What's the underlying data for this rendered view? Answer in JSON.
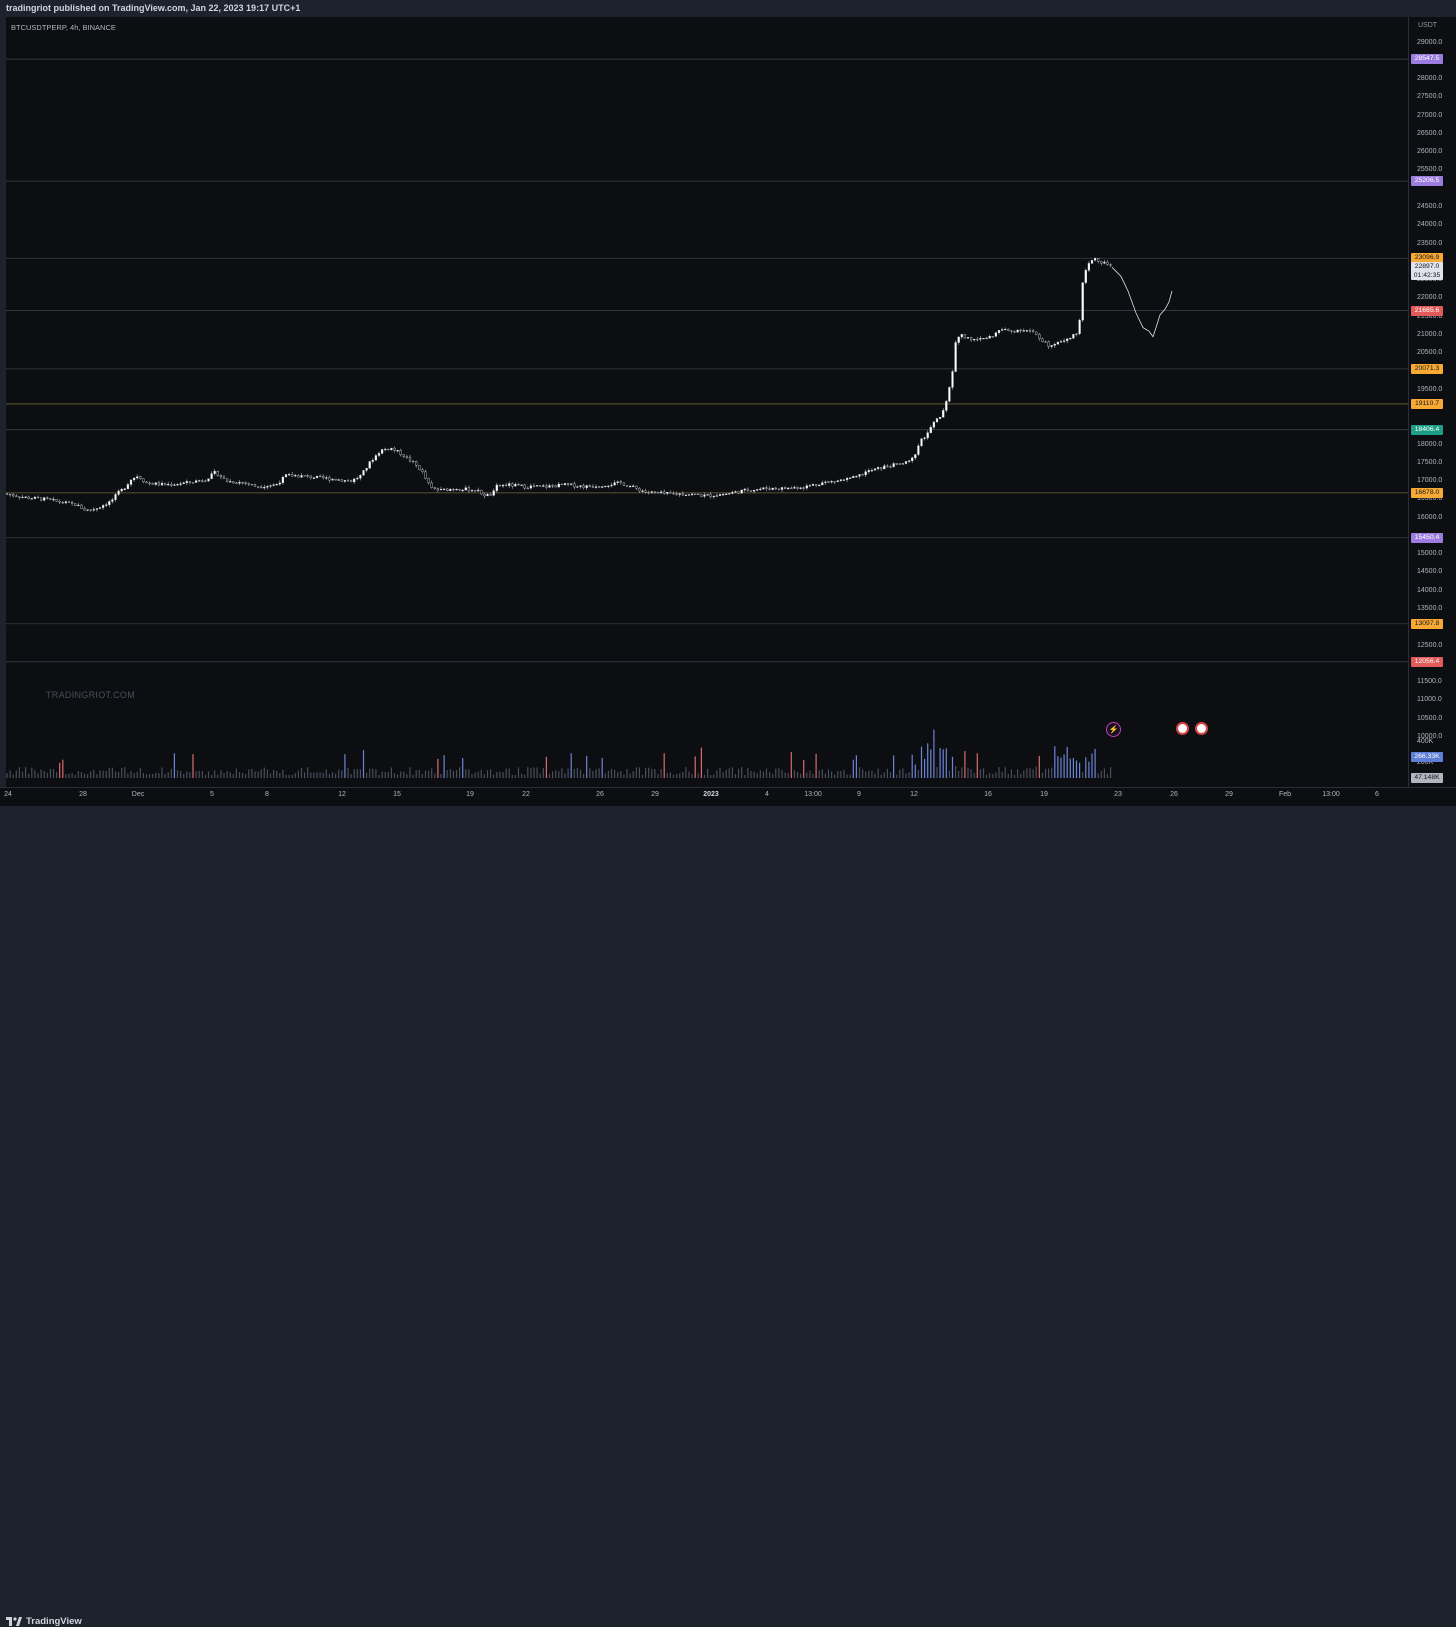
{
  "header": {
    "published_text": "tradingriot published on TradingView.com, Jan 22, 2023 19:17 UTC+1"
  },
  "chart": {
    "symbol_label": "BTCUSDTPERP, 4h, BINANCE",
    "watermark": "TRADINGRIOT.COM",
    "currency": "USDT"
  },
  "price_scale": {
    "ticks": [
      "29000.0",
      "28000.0",
      "27500.0",
      "27000.0",
      "26500.0",
      "26000.0",
      "25500.0",
      "24500.0",
      "24000.0",
      "23500.0",
      "22500.0",
      "22000.0",
      "21500.0",
      "21000.0",
      "20500.0",
      "19500.0",
      "19000.0",
      "18000.0",
      "17500.0",
      "17000.0",
      "16500.0",
      "16000.0",
      "15000.0",
      "14500.0",
      "14000.0",
      "13500.0",
      "13000.0",
      "12500.0",
      "11500.0",
      "11000.0",
      "10500.0",
      "10000.0"
    ],
    "level_badges": [
      {
        "text": "28547.5",
        "color": "#9c7ddf"
      },
      {
        "text": "25206.5",
        "color": "#9c7ddf"
      },
      {
        "text": "23096.9",
        "color": "#f7a934"
      },
      {
        "text": "21665.6",
        "color": "#e35a5a"
      },
      {
        "text": "20071.3",
        "color": "#f7a934"
      },
      {
        "text": "19110.7",
        "color": "#f7a934"
      },
      {
        "text": "18406.4",
        "color": "#1e9e86"
      },
      {
        "text": "16678.0",
        "color": "#f7a934"
      },
      {
        "text": "15450.4",
        "color": "#9c7ddf"
      },
      {
        "text": "13097.8",
        "color": "#f7a934"
      },
      {
        "text": "12056.4",
        "color": "#e35a5a"
      }
    ],
    "last_price": "22897.0",
    "countdown": "01:42:35",
    "volume_labels": {
      "v400": "400K",
      "v200": "200K",
      "vol_last": "266.33K",
      "vol_avg": "47.148K"
    }
  },
  "time_scale": {
    "labels": [
      "24",
      "28",
      "Dec",
      "5",
      "8",
      "12",
      "15",
      "19",
      "22",
      "26",
      "29",
      "2023",
      "4",
      "13:00",
      "9",
      "12",
      "16",
      "19",
      "23",
      "26",
      "29",
      "Feb",
      "13:00",
      "6"
    ]
  },
  "footer": {
    "brand": "TradingView"
  },
  "events": {
    "flash_icon": "lightning-icon",
    "flag_icon": "us-flag-icon"
  },
  "chart_data": {
    "type": "candlestick",
    "interval": "4h",
    "ylim": [
      9800,
      29500
    ],
    "horizontal_levels": [
      28547.5,
      25206.5,
      23096.9,
      21665.6,
      20071.3,
      19110.7,
      18406.4,
      16678.0,
      15450.4,
      13097.8,
      12056.4
    ],
    "level_colors": [
      "#9c7ddf",
      "#9c7ddf",
      "#f7a934",
      "#e35a5a",
      "#f7a934",
      "#f7a934",
      "#1e9e86",
      "#f7a934",
      "#9c7ddf",
      "#f7a934",
      "#e35a5a"
    ],
    "last_price": 22897.0,
    "path_anchors": [
      [
        0,
        16650
      ],
      [
        10,
        16600
      ],
      [
        20,
        16550
      ],
      [
        40,
        16500
      ],
      [
        70,
        16350
      ],
      [
        80,
        16200
      ],
      [
        90,
        16250
      ],
      [
        105,
        16450
      ],
      [
        113,
        16700
      ],
      [
        118,
        16800
      ],
      [
        125,
        17050
      ],
      [
        132,
        17150
      ],
      [
        140,
        16950
      ],
      [
        160,
        16900
      ],
      [
        180,
        16950
      ],
      [
        200,
        17050
      ],
      [
        210,
        17250
      ],
      [
        220,
        17000
      ],
      [
        240,
        16950
      ],
      [
        250,
        16850
      ],
      [
        270,
        16900
      ],
      [
        280,
        17150
      ],
      [
        290,
        17150
      ],
      [
        310,
        17100
      ],
      [
        330,
        17050
      ],
      [
        345,
        17000
      ],
      [
        355,
        17150
      ],
      [
        365,
        17550
      ],
      [
        375,
        17850
      ],
      [
        385,
        17900
      ],
      [
        395,
        17750
      ],
      [
        405,
        17550
      ],
      [
        415,
        17300
      ],
      [
        420,
        17050
      ],
      [
        425,
        16800
      ],
      [
        435,
        16750
      ],
      [
        450,
        16800
      ],
      [
        470,
        16750
      ],
      [
        480,
        16600
      ],
      [
        487,
        16650
      ],
      [
        490,
        16850
      ],
      [
        500,
        16900
      ],
      [
        520,
        16850
      ],
      [
        540,
        16850
      ],
      [
        560,
        16900
      ],
      [
        580,
        16850
      ],
      [
        600,
        16900
      ],
      [
        615,
        16950
      ],
      [
        625,
        16850
      ],
      [
        640,
        16700
      ],
      [
        660,
        16650
      ],
      [
        680,
        16650
      ],
      [
        700,
        16600
      ],
      [
        720,
        16650
      ],
      [
        740,
        16750
      ],
      [
        760,
        16800
      ],
      [
        780,
        16800
      ],
      [
        800,
        16850
      ],
      [
        815,
        16950
      ],
      [
        830,
        17000
      ],
      [
        850,
        17100
      ],
      [
        860,
        17250
      ],
      [
        880,
        17400
      ],
      [
        900,
        17500
      ],
      [
        905,
        17550
      ],
      [
        910,
        17800
      ],
      [
        915,
        18100
      ],
      [
        922,
        18300
      ],
      [
        928,
        18600
      ],
      [
        935,
        18800
      ],
      [
        940,
        19100
      ],
      [
        945,
        19750
      ],
      [
        948,
        20300
      ],
      [
        950,
        20900
      ],
      [
        955,
        21000
      ],
      [
        965,
        20850
      ],
      [
        975,
        20900
      ],
      [
        985,
        20950
      ],
      [
        995,
        21150
      ],
      [
        1005,
        21100
      ],
      [
        1015,
        21150
      ],
      [
        1025,
        21100
      ],
      [
        1035,
        20900
      ],
      [
        1042,
        20700
      ],
      [
        1050,
        20800
      ],
      [
        1060,
        20900
      ],
      [
        1070,
        21000
      ],
      [
        1074,
        21500
      ],
      [
        1077,
        22500
      ],
      [
        1082,
        22900
      ],
      [
        1088,
        23100
      ],
      [
        1095,
        22950
      ],
      [
        1102,
        22950
      ],
      [
        1106,
        22850
      ]
    ],
    "volume": {
      "avg_label": "47.148K",
      "last_label": "266.33K"
    }
  }
}
